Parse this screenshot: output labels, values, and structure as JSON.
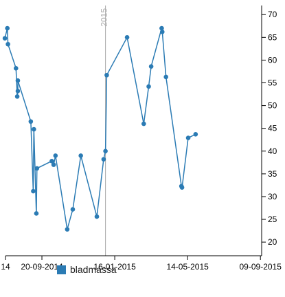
{
  "chart_data": {
    "type": "line",
    "title": "",
    "xlabel": "",
    "ylabel": "",
    "x_axis_type": "date",
    "xlim": [
      "2014-07-23",
      "2015-09-11"
    ],
    "ylim": [
      17,
      72
    ],
    "y_axis_position": "right",
    "grid": false,
    "x_ticks": [
      {
        "date": "2014-07-23",
        "label": "14"
      },
      {
        "date": "2014-09-20",
        "label": "20-09-2014"
      },
      {
        "date": "2015-01-16",
        "label": "16-01-2015"
      },
      {
        "date": "2015-05-14",
        "label": "14-05-2015"
      },
      {
        "date": "2015-09-09",
        "label": "09-09-2015"
      }
    ],
    "y_ticks": [
      20,
      25,
      30,
      35,
      40,
      45,
      50,
      55,
      60,
      65,
      70
    ],
    "reference_line": {
      "date": "2015-01-01",
      "label": "2015"
    },
    "legend_position": "bottom-left",
    "series": [
      {
        "name": "bladmassa",
        "color": "#2b7bb4",
        "points": [
          {
            "x": "2014-07-22",
            "y": 64.8
          },
          {
            "x": "2014-07-26",
            "y": 67.0
          },
          {
            "x": "2014-07-27",
            "y": 63.5
          },
          {
            "x": "2014-08-09",
            "y": 58.2
          },
          {
            "x": "2014-08-11",
            "y": 52.0
          },
          {
            "x": "2014-08-12",
            "y": 53.2
          },
          {
            "x": "2014-08-12",
            "y": 55.5
          },
          {
            "x": "2014-09-02",
            "y": 46.5
          },
          {
            "x": "2014-09-06",
            "y": 31.2
          },
          {
            "x": "2014-09-07",
            "y": 44.8
          },
          {
            "x": "2014-09-11",
            "y": 26.3
          },
          {
            "x": "2014-09-12",
            "y": 36.2
          },
          {
            "x": "2014-10-06",
            "y": 37.8
          },
          {
            "x": "2014-10-09",
            "y": 37.0
          },
          {
            "x": "2014-10-12",
            "y": 39.0
          },
          {
            "x": "2014-10-31",
            "y": 22.8
          },
          {
            "x": "2014-11-09",
            "y": 27.2
          },
          {
            "x": "2014-11-22",
            "y": 39.0
          },
          {
            "x": "2014-12-18",
            "y": 25.6
          },
          {
            "x": "2014-12-29",
            "y": 38.2
          },
          {
            "x": "2015-01-01",
            "y": 40.0
          },
          {
            "x": "2015-01-03",
            "y": 56.7
          },
          {
            "x": "2015-02-05",
            "y": 65.0
          },
          {
            "x": "2015-03-04",
            "y": 46.0
          },
          {
            "x": "2015-03-12",
            "y": 54.2
          },
          {
            "x": "2015-03-16",
            "y": 58.6
          },
          {
            "x": "2015-04-02",
            "y": 67.0
          },
          {
            "x": "2015-04-03",
            "y": 66.2
          },
          {
            "x": "2015-04-09",
            "y": 56.3
          },
          {
            "x": "2015-05-04",
            "y": 32.3
          },
          {
            "x": "2015-05-05",
            "y": 32.0
          },
          {
            "x": "2015-05-15",
            "y": 42.9
          },
          {
            "x": "2015-05-27",
            "y": 43.7
          }
        ]
      }
    ]
  }
}
